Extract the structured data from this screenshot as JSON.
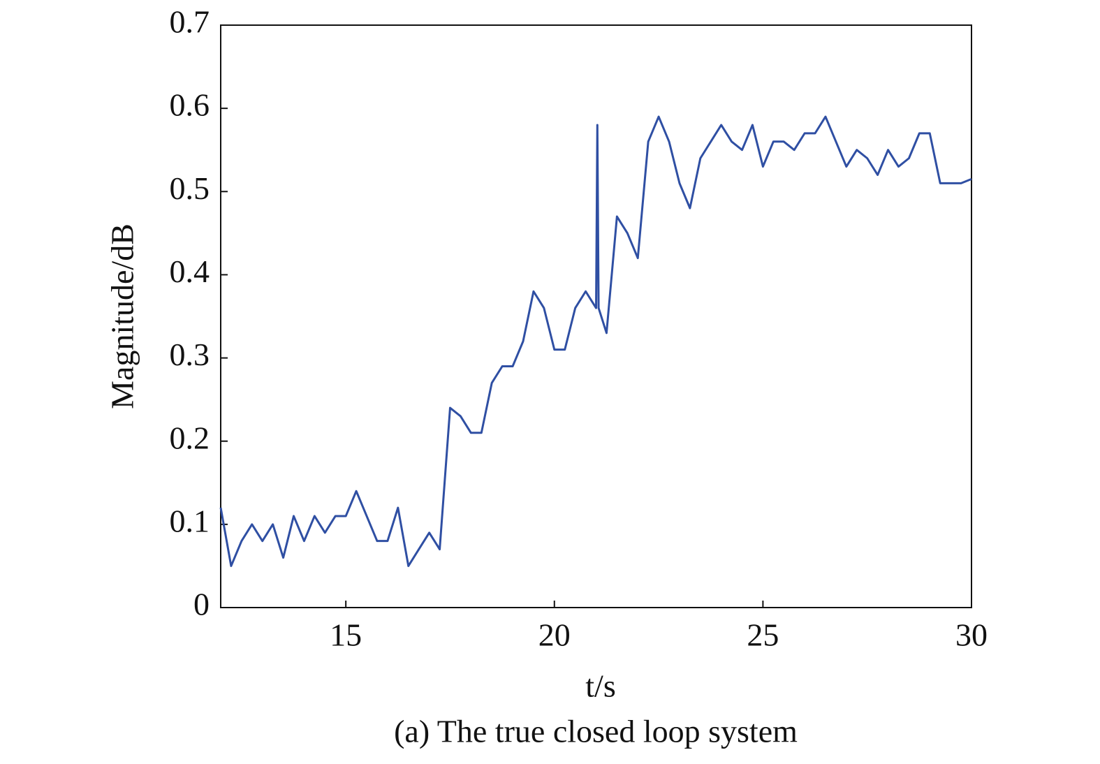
{
  "chart_data": {
    "type": "line",
    "xlabel": "t/s",
    "ylabel": "Magnitude/dB",
    "caption": "(a) The true closed loop system",
    "x": [
      12,
      12.25,
      12.5,
      12.75,
      13,
      13.25,
      13.5,
      13.75,
      14,
      14.25,
      14.5,
      14.75,
      15,
      15.25,
      15.5,
      15.75,
      16,
      16.25,
      16.5,
      16.75,
      17,
      17.25,
      17.5,
      17.75,
      18,
      18.25,
      18.5,
      18.75,
      19,
      19.25,
      19.5,
      19.75,
      20,
      20.25,
      20.5,
      20.75,
      21,
      21.03,
      21.06,
      21.25,
      21.5,
      21.75,
      22,
      22.25,
      22.5,
      22.75,
      23,
      23.25,
      23.5,
      23.75,
      24,
      24.25,
      24.5,
      24.75,
      25,
      25.25,
      25.5,
      25.75,
      26,
      26.25,
      26.5,
      26.75,
      27,
      27.25,
      27.5,
      27.75,
      28,
      28.25,
      28.5,
      28.75,
      29,
      29.25,
      29.5,
      29.75,
      30
    ],
    "series": [
      {
        "color": "#2f4fa3",
        "values": [
          0.12,
          0.05,
          0.08,
          0.1,
          0.08,
          0.1,
          0.06,
          0.11,
          0.08,
          0.11,
          0.09,
          0.11,
          0.11,
          0.14,
          0.11,
          0.08,
          0.08,
          0.12,
          0.05,
          0.07,
          0.09,
          0.07,
          0.24,
          0.23,
          0.21,
          0.21,
          0.27,
          0.29,
          0.29,
          0.32,
          0.38,
          0.36,
          0.31,
          0.31,
          0.36,
          0.38,
          0.36,
          0.58,
          0.36,
          0.33,
          0.47,
          0.45,
          0.42,
          0.56,
          0.59,
          0.56,
          0.51,
          0.48,
          0.54,
          0.56,
          0.58,
          0.56,
          0.55,
          0.58,
          0.53,
          0.56,
          0.56,
          0.55,
          0.57,
          0.57,
          0.59,
          0.56,
          0.53,
          0.55,
          0.54,
          0.52,
          0.55,
          0.53,
          0.54,
          0.57,
          0.57,
          0.51,
          0.51,
          0.51,
          0.515
        ]
      }
    ],
    "xlim": [
      12,
      30
    ],
    "xticks": [
      15,
      20,
      25,
      30
    ],
    "ylim": [
      0,
      0.7
    ],
    "yticks": [
      0,
      0.1,
      0.2,
      0.3,
      0.4,
      0.5,
      0.6,
      0.7
    ]
  }
}
